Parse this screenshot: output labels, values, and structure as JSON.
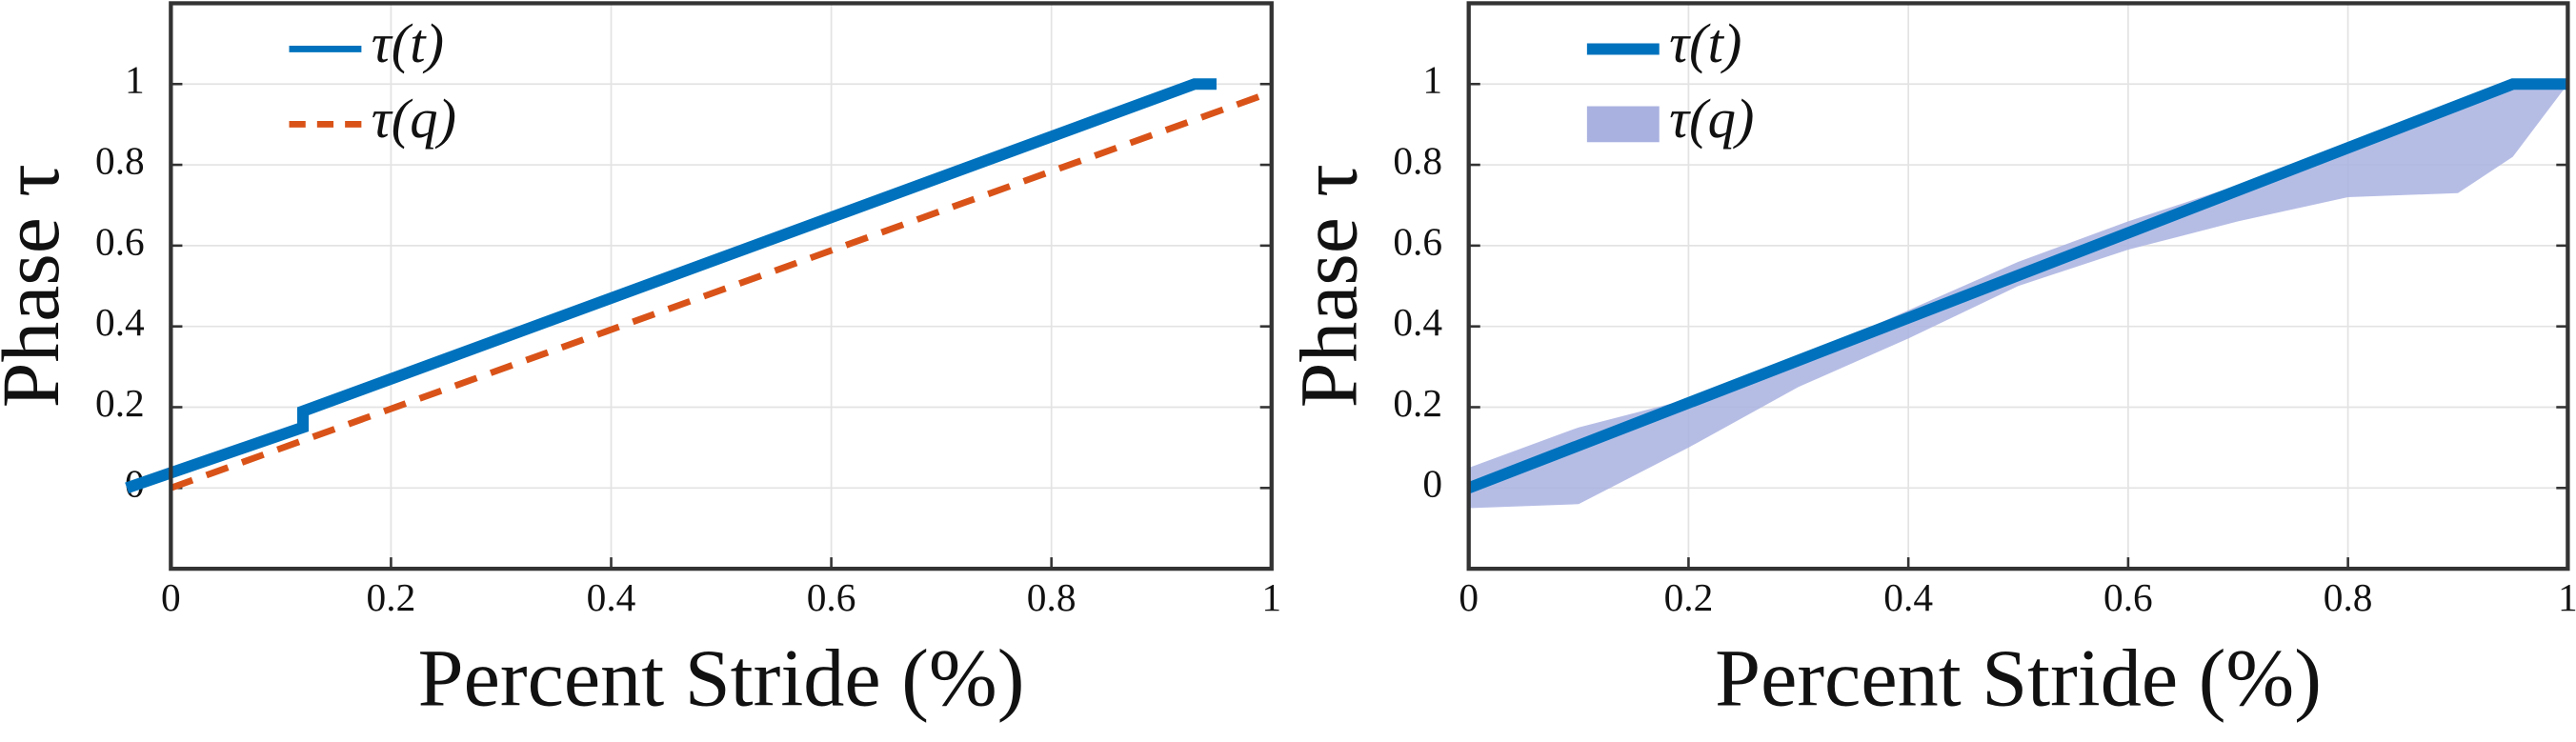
{
  "chart_data": [
    {
      "type": "line",
      "xlabel": "Percent Stride (%)",
      "ylabel": "Phase τ",
      "xlim": [
        0,
        1
      ],
      "ylim": [
        -0.2,
        1.2
      ],
      "xticks": [
        0,
        0.2,
        0.4,
        0.6,
        0.8,
        1
      ],
      "yticks": [
        0,
        0.2,
        0.4,
        0.6,
        0.8,
        1
      ],
      "grid": true,
      "legend": "upper left",
      "series": [
        {
          "name": "τ(t)",
          "type": "line",
          "style": "solid",
          "color": "#0072bd",
          "x": [
            -0.04,
            0.12,
            0.12,
            0.93,
            0.95
          ],
          "values": [
            0,
            0.15,
            0.19,
            1,
            1
          ]
        },
        {
          "name": "τ(q)",
          "type": "line",
          "style": "dashed",
          "color": "#d95319",
          "x": [
            0,
            1
          ],
          "values": [
            0,
            0.98
          ]
        }
      ]
    },
    {
      "type": "line",
      "xlabel": "Percent Stride (%)",
      "ylabel": "Phase τ",
      "xlim": [
        0,
        1
      ],
      "ylim": [
        -0.2,
        1.2
      ],
      "xticks": [
        0,
        0.2,
        0.4,
        0.6,
        0.8,
        1
      ],
      "yticks": [
        0,
        0.2,
        0.4,
        0.6,
        0.8,
        1
      ],
      "grid": true,
      "legend": "upper left",
      "series": [
        {
          "name": "τ(t)",
          "type": "line",
          "style": "solid",
          "color": "#0072bd",
          "x": [
            0,
            0.95,
            1
          ],
          "values": [
            0,
            1,
            1
          ]
        },
        {
          "name": "τ(q)",
          "type": "band",
          "color": "#a9b1e0",
          "x": [
            0,
            0.1,
            0.2,
            0.3,
            0.4,
            0.5,
            0.6,
            0.7,
            0.8,
            0.9,
            0.95,
            1
          ],
          "lower": [
            -0.05,
            -0.04,
            0.1,
            0.25,
            0.37,
            0.5,
            0.59,
            0.66,
            0.72,
            0.73,
            0.82,
            1
          ],
          "upper": [
            0.05,
            0.15,
            0.22,
            0.32,
            0.44,
            0.56,
            0.66,
            0.75,
            0.85,
            0.94,
            1,
            1
          ]
        }
      ]
    }
  ]
}
